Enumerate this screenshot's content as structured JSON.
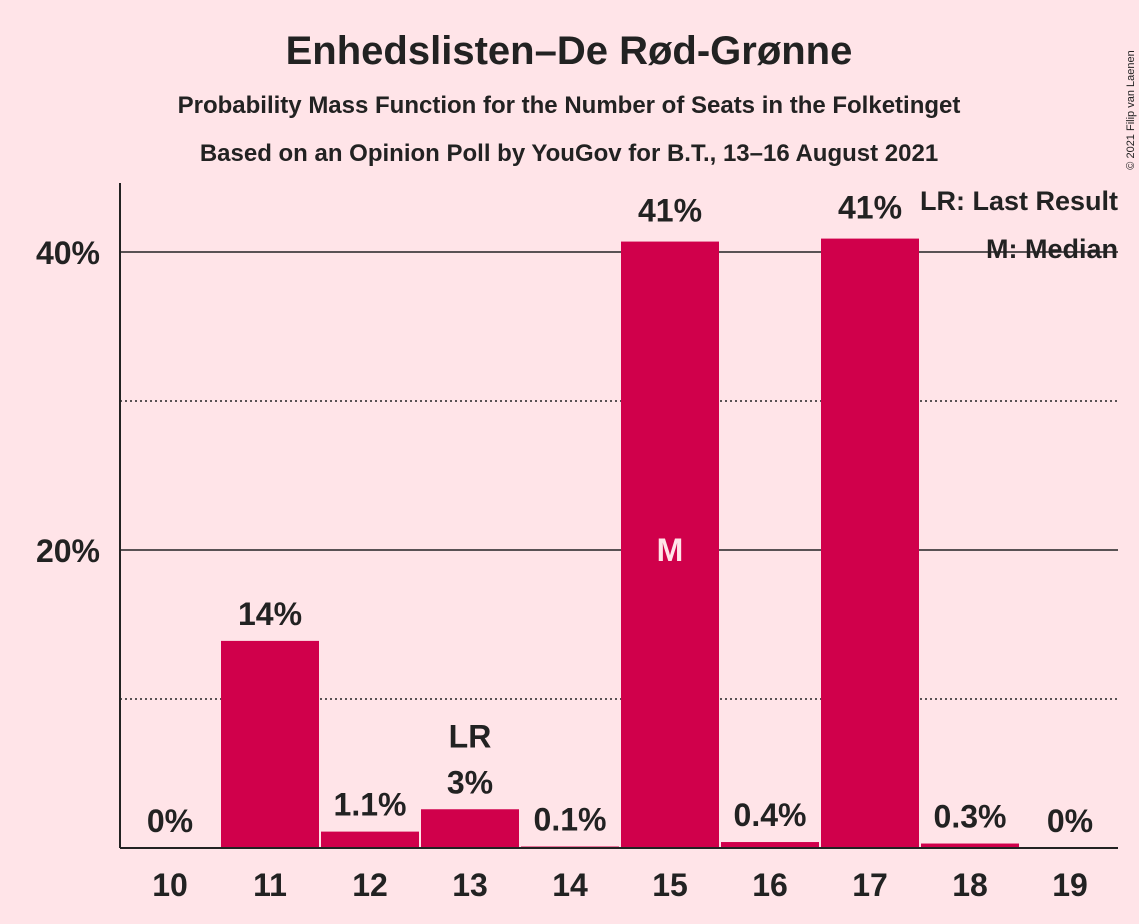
{
  "colors": {
    "background": "#ffe4e8",
    "bar": "#d0004b",
    "text": "#222222"
  },
  "copyright": "© 2021 Filip van Laenen",
  "chart_data": {
    "type": "bar",
    "title": "Enhedslisten–De Rød-Grønne",
    "subtitle": "Probability Mass Function for the Number of Seats in the Folketinget",
    "subtitle2": "Based on an Opinion Poll by YouGov for B.T., 13–16 August 2021",
    "categories": [
      "10",
      "11",
      "12",
      "13",
      "14",
      "15",
      "16",
      "17",
      "18",
      "19"
    ],
    "values": [
      0,
      13.9,
      1.1,
      2.6,
      0.1,
      40.7,
      0.4,
      40.9,
      0.3,
      0
    ],
    "data_labels": [
      "0%",
      "14%",
      "1.1%",
      "3%",
      "0.1%",
      "41%",
      "0.4%",
      "41%",
      "0.3%",
      "0%"
    ],
    "last_result_index": 3,
    "median_index": 5,
    "last_result_marker": "LR",
    "median_marker": "M",
    "y_ticks": [
      {
        "value": 20,
        "label": "20%"
      },
      {
        "value": 40,
        "label": "40%"
      }
    ],
    "minor_gridlines": [
      10,
      30
    ],
    "ylim": [
      0,
      45
    ],
    "legend": [
      "LR: Last Result",
      "M: Median"
    ],
    "legend_position": "top-right"
  }
}
